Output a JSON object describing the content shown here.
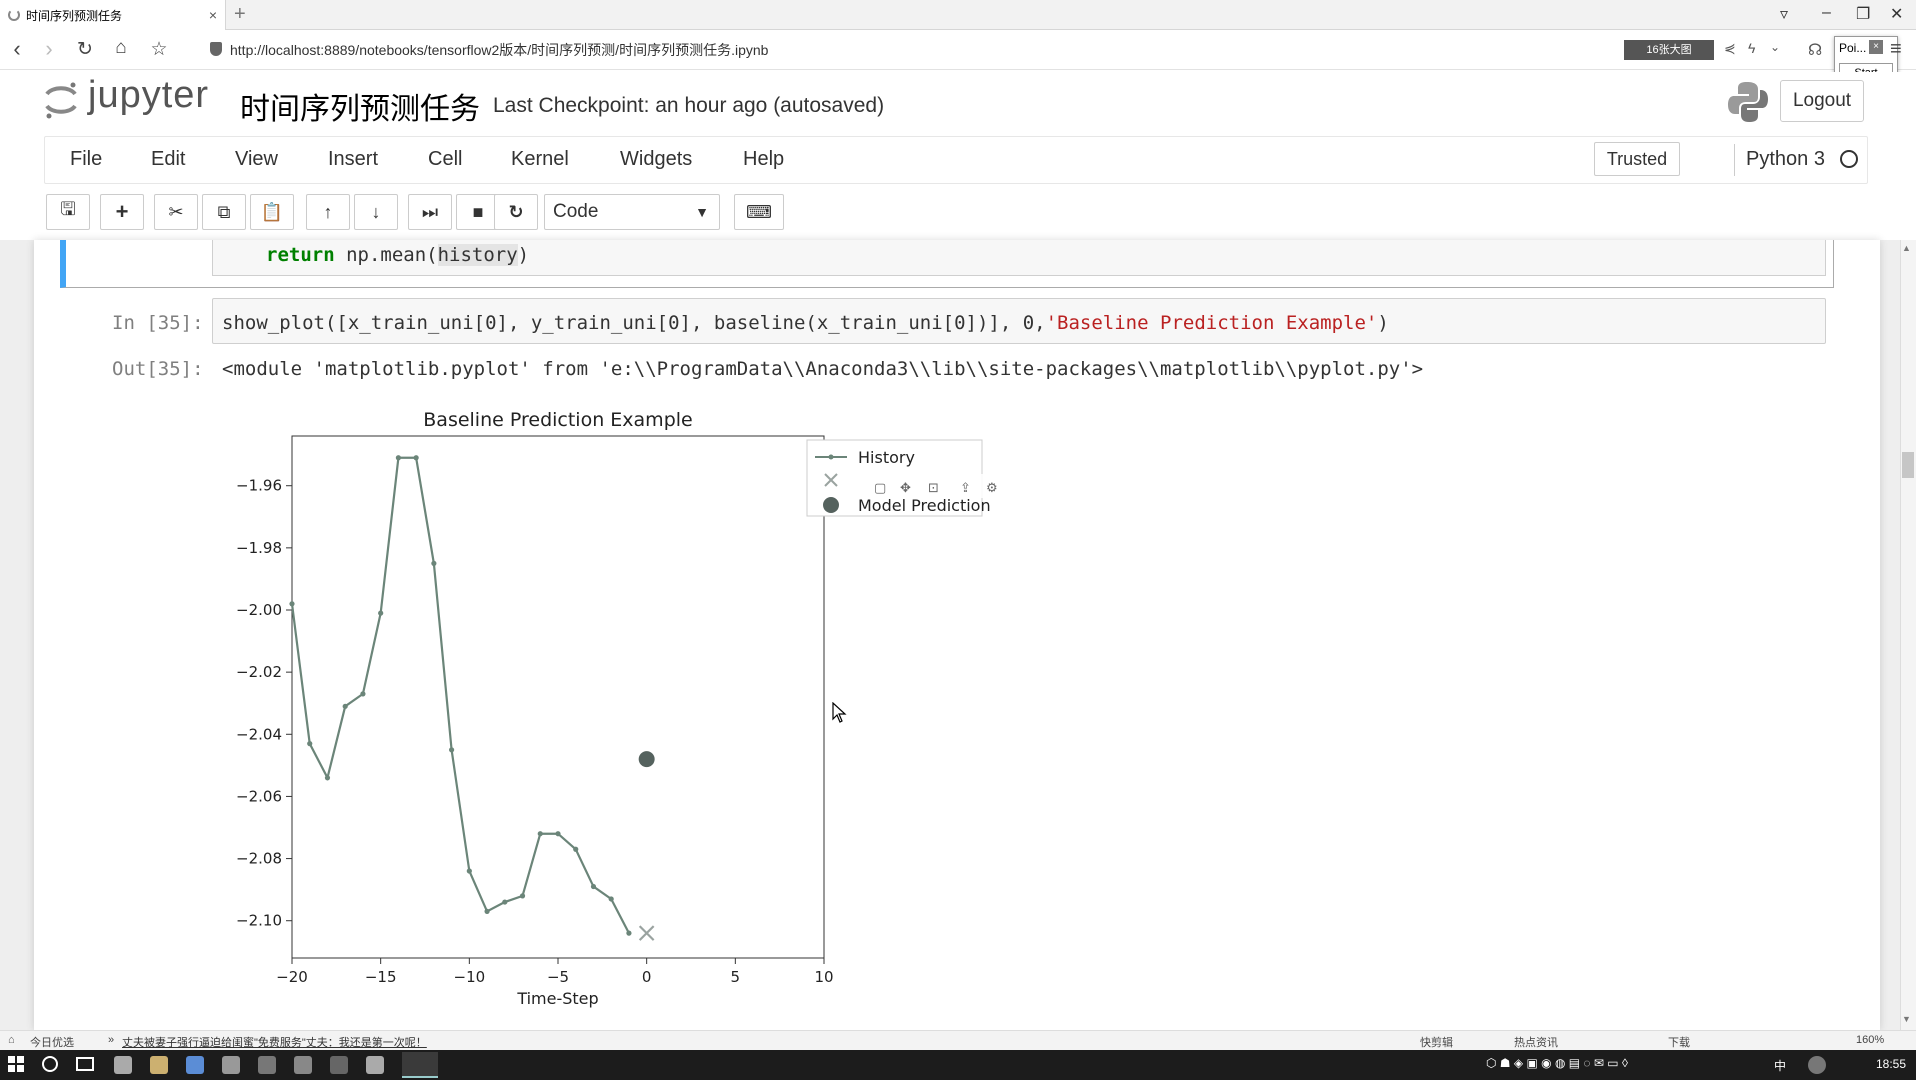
{
  "browser": {
    "tab_title": "时间序列预测任务",
    "url": "http://localhost:8889/notebooks/tensorflow2版本/时间序列预测/时间序列预测任务.ipynb",
    "big_image_label": "16张大图",
    "popup_title": "Poi...",
    "popup_start": "Start"
  },
  "jupyter": {
    "logo_text": "jupyter",
    "notebook_title": "时间序列预测任务",
    "checkpoint": "Last Checkpoint: an hour ago (autosaved)",
    "logout_label": "Logout",
    "menu": [
      "File",
      "Edit",
      "View",
      "Insert",
      "Cell",
      "Kernel",
      "Widgets",
      "Help"
    ],
    "trusted_label": "Trusted",
    "kernel_name": "Python 3",
    "cell_type": "Code"
  },
  "cells": {
    "prev_code_kw": "return",
    "prev_code_mid": " np.mean(",
    "prev_code_hl": "history",
    "prev_code_end": ")",
    "in_prompt": "In [35]:",
    "in_code_a": "show_plot([x_train_uni[0], y_train_uni[0], baseline(x_train_uni[0])], 0,",
    "in_code_str": "'Baseline Prediction Example'",
    "in_code_end": ")",
    "out_prompt": "Out[35]:",
    "out_text": "<module 'matplotlib.pyplot' from 'e:\\\\ProgramData\\\\Anaconda3\\\\lib\\\\site-packages\\\\matplotlib\\\\pyplot.py'>"
  },
  "chart_data": {
    "type": "line",
    "title": "Baseline Prediction Example",
    "xlabel": "Time-Step",
    "ylabel": "",
    "xlim": [
      -20,
      10
    ],
    "ylim": [
      -2.112,
      -1.944
    ],
    "xticks": [
      -20,
      -15,
      -10,
      -5,
      0,
      5,
      10
    ],
    "yticks": [
      -1.96,
      -1.98,
      -2.0,
      -2.02,
      -2.04,
      -2.06,
      -2.08,
      -2.1
    ],
    "legend_position": "top-right",
    "series": [
      {
        "name": "History",
        "style": "line-markers",
        "color": "#6b8579",
        "x": [
          -20,
          -19,
          -18,
          -17,
          -16,
          -15,
          -14,
          -13,
          -12,
          -11,
          -10,
          -9,
          -8,
          -7,
          -6,
          -5,
          -4,
          -3,
          -2,
          -1
        ],
        "y": [
          -1.998,
          -2.043,
          -2.054,
          -2.031,
          -2.027,
          -2.001,
          -1.951,
          -1.951,
          -1.985,
          -2.045,
          -2.084,
          -2.097,
          -2.094,
          -2.092,
          -2.072,
          -2.072,
          -2.077,
          -2.089,
          -2.093,
          -2.104
        ]
      },
      {
        "name": "",
        "style": "x-marker",
        "color": "#9aa3a0",
        "x": [
          0
        ],
        "y": [
          -2.104
        ]
      },
      {
        "name": "Model Prediction",
        "style": "dot-marker",
        "color": "#55625e",
        "x": [
          0
        ],
        "y": [
          -2.048
        ]
      }
    ]
  },
  "status": {
    "left_label": "今日优选",
    "news": "丈夫被妻子强行逼迫给闺蜜\"免费服务\"丈夫：我还是第一次呢！",
    "right_items": [
      "快剪辑",
      "热点资讯",
      "下载"
    ],
    "zoom": "160%"
  },
  "taskbar": {
    "clock": "18:55",
    "ime": "中"
  }
}
